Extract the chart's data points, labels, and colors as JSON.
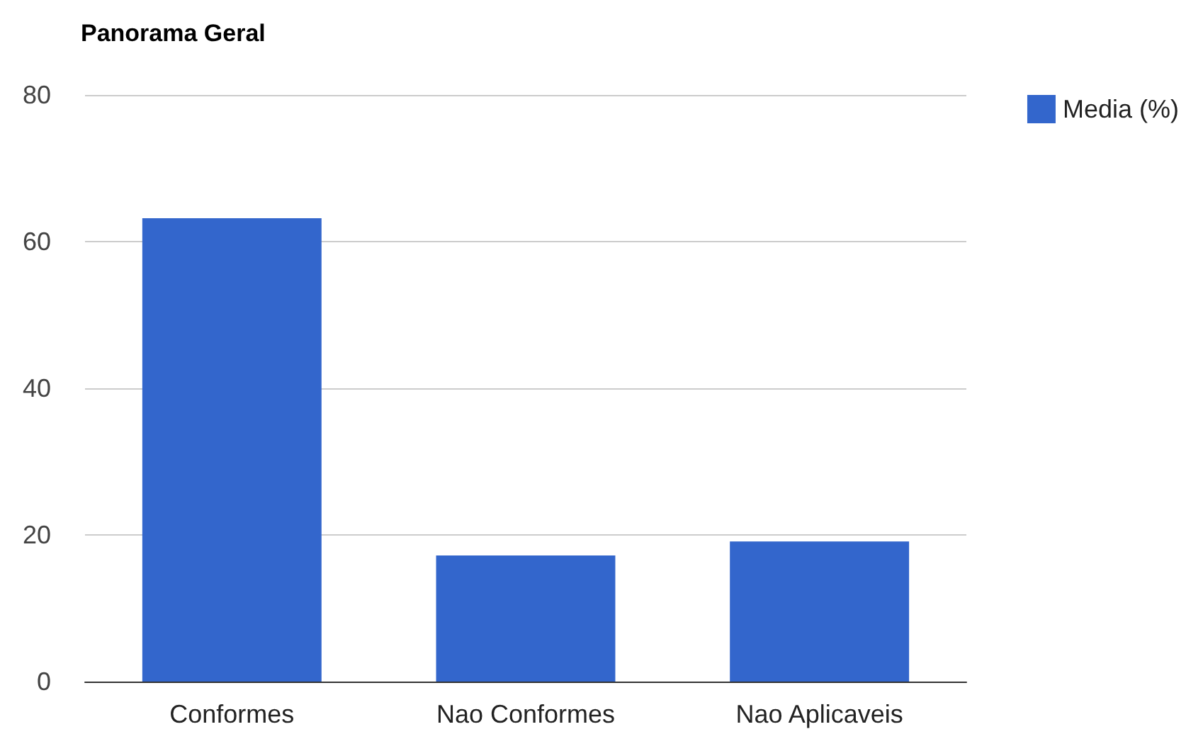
{
  "chart_data": {
    "type": "bar",
    "title": "Panorama Geral",
    "categories": [
      "Conformes",
      "Nao Conformes",
      "Nao Aplicaveis"
    ],
    "series": [
      {
        "name": "Media (%)",
        "color": "#3366cc",
        "values": [
          63.2,
          17.2,
          19.1
        ]
      }
    ],
    "ylim": [
      0,
      80
    ],
    "yticks": [
      0,
      20,
      40,
      60,
      80
    ],
    "grid": "y",
    "legend": "right"
  }
}
